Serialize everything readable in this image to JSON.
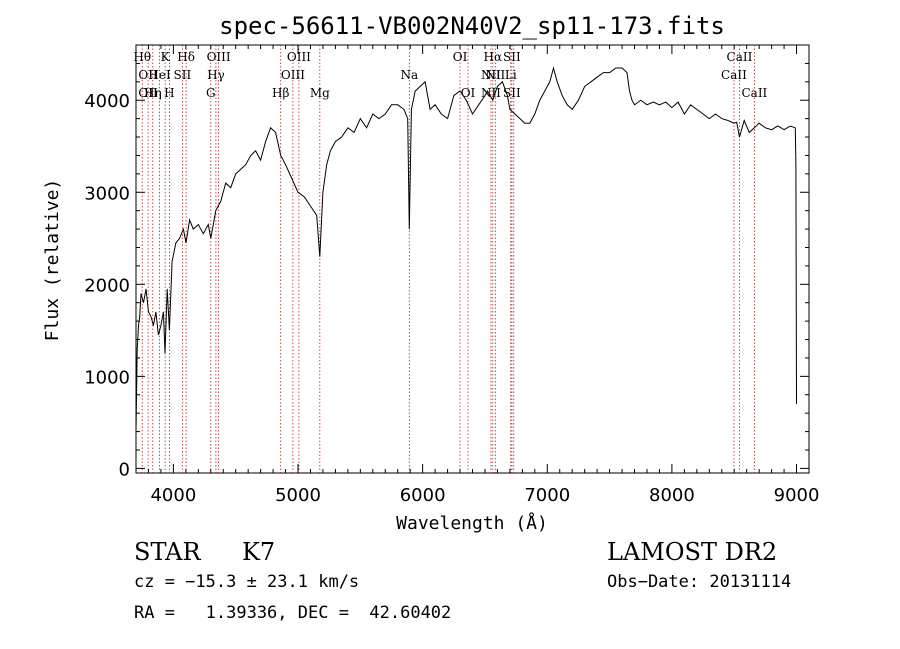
{
  "chart_data": {
    "type": "line",
    "title": "spec-56611-VB002N40V2_sp11-173.fits",
    "xlabel": "Wavelength (Å)",
    "ylabel": "Flux (relative)",
    "xlim": [
      3700,
      9100
    ],
    "ylim": [
      -50,
      4600
    ],
    "x_ticks": [
      4000,
      5000,
      6000,
      7000,
      8000,
      9000
    ],
    "y_ticks": [
      0,
      1000,
      2000,
      3000,
      4000
    ],
    "grid": false,
    "series": [
      {
        "color": "#000000",
        "x": [
          3700,
          3710,
          3720,
          3730,
          3740,
          3760,
          3780,
          3800,
          3820,
          3840,
          3860,
          3880,
          3900,
          3920,
          3933,
          3950,
          3968,
          3990,
          4020,
          4050,
          4080,
          4101,
          4130,
          4160,
          4200,
          4240,
          4280,
          4300,
          4340,
          4380,
          4420,
          4460,
          4500,
          4540,
          4580,
          4620,
          4660,
          4700,
          4740,
          4780,
          4820,
          4861,
          4900,
          4950,
          5000,
          5050,
          5100,
          5150,
          5175,
          5200,
          5230,
          5260,
          5300,
          5350,
          5400,
          5450,
          5500,
          5550,
          5600,
          5650,
          5700,
          5750,
          5800,
          5850,
          5880,
          5893,
          5910,
          5940,
          5980,
          6020,
          6060,
          6100,
          6150,
          6200,
          6250,
          6300,
          6350,
          6400,
          6450,
          6500,
          6520,
          6563,
          6600,
          6640,
          6680,
          6700,
          6740,
          6780,
          6820,
          6860,
          6900,
          6940,
          6980,
          7020,
          7050,
          7080,
          7120,
          7160,
          7200,
          7250,
          7300,
          7350,
          7400,
          7450,
          7500,
          7550,
          7600,
          7640,
          7660,
          7680,
          7700,
          7750,
          7800,
          7850,
          7900,
          7950,
          8000,
          8050,
          8100,
          8150,
          8200,
          8250,
          8300,
          8350,
          8400,
          8450,
          8498,
          8520,
          8542,
          8580,
          8620,
          8662,
          8700,
          8750,
          8800,
          8850,
          8900,
          8950,
          8990,
          8995,
          9000
        ],
        "y": [
          400,
          1300,
          1550,
          1650,
          1900,
          1800,
          1950,
          1700,
          1650,
          1550,
          1700,
          1450,
          1550,
          1700,
          1250,
          1950,
          1500,
          2250,
          2450,
          2500,
          2600,
          2450,
          2700,
          2600,
          2650,
          2550,
          2650,
          2500,
          2800,
          2900,
          3100,
          3050,
          3200,
          3250,
          3300,
          3400,
          3450,
          3350,
          3550,
          3700,
          3650,
          3400,
          3300,
          3150,
          3000,
          2950,
          2850,
          2750,
          2300,
          3000,
          3300,
          3450,
          3550,
          3600,
          3700,
          3650,
          3800,
          3700,
          3850,
          3800,
          3850,
          3950,
          3950,
          3900,
          3800,
          2600,
          3900,
          4100,
          4150,
          4200,
          3900,
          3950,
          3850,
          3800,
          4050,
          4100,
          4000,
          3850,
          3950,
          4050,
          4100,
          4000,
          4150,
          4200,
          4050,
          3900,
          3850,
          3800,
          3750,
          3750,
          3850,
          4000,
          4100,
          4200,
          4350,
          4200,
          4050,
          3950,
          3900,
          4000,
          4150,
          4200,
          4250,
          4300,
          4300,
          4350,
          4350,
          4300,
          4100,
          4000,
          3950,
          4000,
          3950,
          3980,
          3950,
          3980,
          3920,
          3980,
          3850,
          3950,
          3900,
          3850,
          3800,
          3850,
          3800,
          3780,
          3750,
          3760,
          3600,
          3780,
          3650,
          3700,
          3750,
          3700,
          3680,
          3720,
          3680,
          3720,
          3700,
          3300,
          700
        ]
      }
    ],
    "lines": [
      {
        "x": 3750,
        "labels": [
          "Hθ",
          "",
          ""
        ]
      },
      {
        "x": 3797,
        "labels": [
          "",
          "OII",
          "OII"
        ]
      },
      {
        "x": 3835,
        "labels": [
          "",
          "",
          "Hη"
        ]
      },
      {
        "x": 3889,
        "labels": [
          "",
          "HeI",
          ""
        ]
      },
      {
        "x": 3934,
        "labels": [
          "K",
          "",
          ""
        ]
      },
      {
        "x": 3968,
        "labels": [
          "",
          "",
          "H"
        ]
      },
      {
        "x": 4072,
        "labels": [
          "",
          "SII",
          ""
        ]
      },
      {
        "x": 4102,
        "labels": [
          "Hδ",
          "",
          ""
        ]
      },
      {
        "x": 4300,
        "labels": [
          "",
          "",
          "G"
        ]
      },
      {
        "x": 4341,
        "labels": [
          "",
          "Hγ",
          ""
        ]
      },
      {
        "x": 4363,
        "labels": [
          "OIII",
          "",
          ""
        ]
      },
      {
        "x": 4861,
        "labels": [
          "",
          "",
          "Hβ"
        ]
      },
      {
        "x": 4959,
        "labels": [
          "",
          "OIII",
          ""
        ]
      },
      {
        "x": 5007,
        "labels": [
          "OIII",
          "",
          ""
        ]
      },
      {
        "x": 5175,
        "labels": [
          "",
          "",
          "Mg"
        ]
      },
      {
        "x": 5893,
        "labels": [
          "",
          "Na",
          ""
        ]
      },
      {
        "x": 6300,
        "labels": [
          "OI",
          "",
          ""
        ]
      },
      {
        "x": 6364,
        "labels": [
          "",
          "",
          "OI"
        ]
      },
      {
        "x": 6548,
        "labels": [
          "",
          "NII",
          "NII"
        ]
      },
      {
        "x": 6563,
        "labels": [
          "Hα",
          "",
          ""
        ]
      },
      {
        "x": 6583,
        "labels": [
          "",
          "NII",
          ""
        ]
      },
      {
        "x": 6707,
        "labels": [
          "",
          "Li",
          ""
        ]
      },
      {
        "x": 6716,
        "labels": [
          "SII",
          "",
          "SII"
        ]
      },
      {
        "x": 6731,
        "labels": [
          "",
          "",
          ""
        ]
      },
      {
        "x": 8498,
        "labels": [
          "",
          "CaII",
          ""
        ]
      },
      {
        "x": 8542,
        "labels": [
          "CaII",
          "",
          ""
        ]
      },
      {
        "x": 8662,
        "labels": [
          "",
          "",
          "CaII"
        ]
      }
    ]
  },
  "info": {
    "object_class": "STAR",
    "subclass": "K7",
    "survey": "LAMOST DR2",
    "redshift": "cz = −15.3 ± 23.1 km/s",
    "obs_date": "Obs−Date: 20131114",
    "coords": "RA =   1.39336, DEC =  42.60402"
  }
}
